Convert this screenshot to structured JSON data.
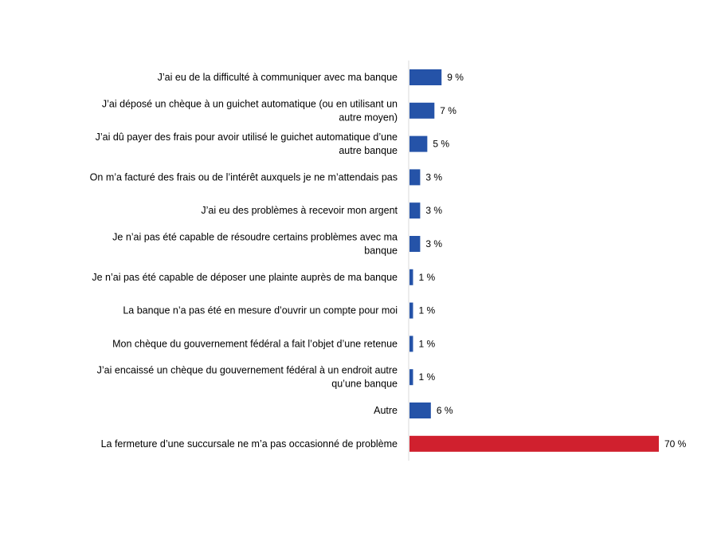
{
  "chart_data": {
    "type": "bar",
    "orientation": "horizontal",
    "title": "",
    "xlabel": "",
    "ylabel": "",
    "xlim": [
      0,
      70
    ],
    "grid": false,
    "legend": "none",
    "value_suffix": " %",
    "categories": [
      [
        "J’ai eu de la difficulté à communiquer avec ma banque"
      ],
      [
        "J’ai déposé un chèque à un guichet automatique (ou en utilisant un",
        "autre moyen)"
      ],
      [
        "J’ai dû payer des frais pour avoir utilisé le guichet automatique d’une",
        "autre banque"
      ],
      [
        "On m’a facturé des frais ou de l’intérêt auxquels je ne m’attendais pas"
      ],
      [
        "J’ai eu des problèmes à recevoir mon argent"
      ],
      [
        "Je n’ai pas été capable de résoudre certains problèmes avec ma",
        "banque"
      ],
      [
        "Je n’ai pas été capable de déposer une plainte auprès de ma banque"
      ],
      [
        "La banque n’a pas été en mesure d’ouvrir un compte pour moi"
      ],
      [
        "Mon chèque du gouvernement fédéral a fait l’objet d’une retenue"
      ],
      [
        "J’ai encaissé un chèque du gouvernement fédéral à un endroit autre",
        "qu’une banque"
      ],
      [
        "Autre"
      ],
      [
        "La fermeture d’une succursale ne m’a pas occasionné de problème"
      ]
    ],
    "values": [
      9,
      7,
      5,
      3,
      3,
      3,
      1,
      1,
      1,
      1,
      6,
      70
    ],
    "value_labels": [
      "9 %",
      "7 %",
      "5 %",
      "3 %",
      "3 %",
      "3 %",
      "1 %",
      "1 %",
      "1 %",
      "1 %",
      "6 %",
      "70 %"
    ],
    "bar_colors": [
      "#2553A8",
      "#2553A8",
      "#2553A8",
      "#2553A8",
      "#2553A8",
      "#2553A8",
      "#2553A8",
      "#2553A8",
      "#2553A8",
      "#2553A8",
      "#2553A8",
      "#D0202E"
    ],
    "axis_color": "#d9d9d9"
  }
}
